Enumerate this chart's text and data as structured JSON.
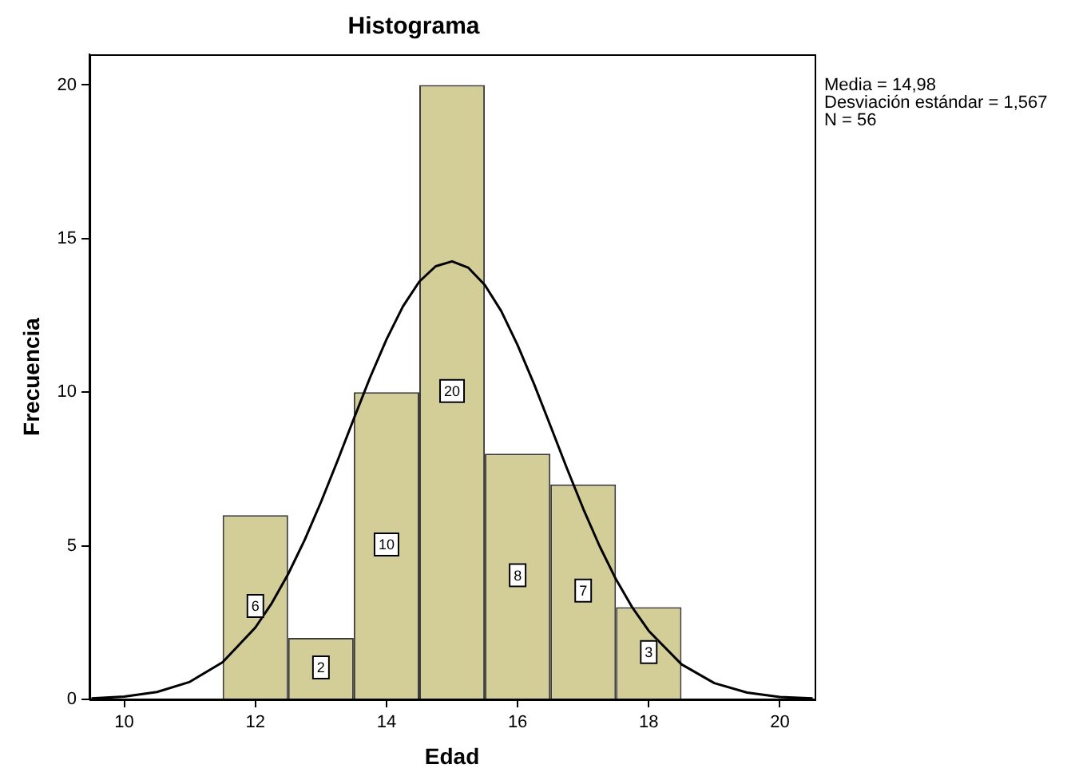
{
  "chart_data": {
    "type": "histogram",
    "title": "Histograma",
    "xlabel": "Edad",
    "ylabel": "Frecuencia",
    "bins": [
      11.5,
      12.5,
      13.5,
      14.5,
      15.5,
      16.5,
      17.5,
      18.5
    ],
    "values": [
      6,
      2,
      10,
      20,
      8,
      7,
      3
    ],
    "color": "#d3ce97",
    "value_labels": [
      "6",
      "2",
      "10",
      "20",
      "8",
      "7",
      "3"
    ],
    "series": [
      {
        "type": "line",
        "color": "#000000",
        "x": [
          9.5,
          10,
          10.5,
          11,
          11.5,
          12,
          12.25,
          12.5,
          12.75,
          13,
          13.25,
          13.5,
          13.75,
          14,
          14.25,
          14.5,
          14.75,
          15,
          15.25,
          15.5,
          15.75,
          16,
          16.25,
          16.5,
          16.75,
          17,
          17.25,
          17.5,
          17.75,
          18,
          18.5,
          19,
          19.5,
          20,
          20.5
        ],
        "values": [
          0.03,
          0.09,
          0.24,
          0.57,
          1.21,
          2.34,
          3.13,
          4.08,
          5.18,
          6.42,
          7.75,
          9.13,
          10.48,
          11.72,
          12.79,
          13.6,
          14.1,
          14.26,
          14.05,
          13.49,
          12.64,
          11.53,
          10.27,
          8.91,
          7.53,
          6.21,
          4.99,
          3.91,
          2.99,
          2.23,
          1.14,
          0.53,
          0.22,
          0.08,
          0.03
        ]
      }
    ],
    "marker": "none",
    "line_style": "solid",
    "xlim": [
      9.47,
      20.53
    ],
    "xticks": [
      10,
      12,
      14,
      16,
      18,
      20
    ],
    "ylim": [
      0,
      21
    ],
    "yticks": [
      0,
      5,
      10,
      15,
      20
    ],
    "grid": false,
    "legend": false,
    "annotations": [
      "Media = 14,98",
      "Desviación estándar = 1,567",
      "N = 56"
    ]
  }
}
